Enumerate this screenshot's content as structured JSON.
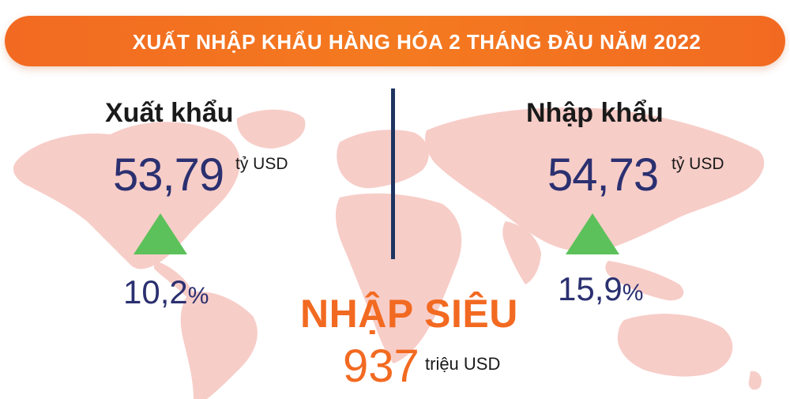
{
  "header": {
    "title": "XUẤT NHẬP KHẨU HÀNG HÓA  2 THÁNG ĐẦU NĂM 2022"
  },
  "export": {
    "label": "Xuất khẩu",
    "value": "53,79",
    "unit": "tỷ USD",
    "change_number": "10,2",
    "change_sign": "%",
    "trend": "up"
  },
  "import": {
    "label": "Nhập khẩu",
    "value": "54,73",
    "unit": "tỷ USD",
    "change_number": "15,9",
    "change_sign": "%",
    "trend": "up"
  },
  "trade_balance": {
    "label": "NHẬP SIÊU",
    "value": "937",
    "unit": "triệu USD"
  },
  "colors": {
    "accent_orange": "#f26a21",
    "value_navy": "#2b3070",
    "divider_navy": "#1f3560",
    "triangle_green": "#5cc15a",
    "map_pink": "#f7cdc8"
  }
}
